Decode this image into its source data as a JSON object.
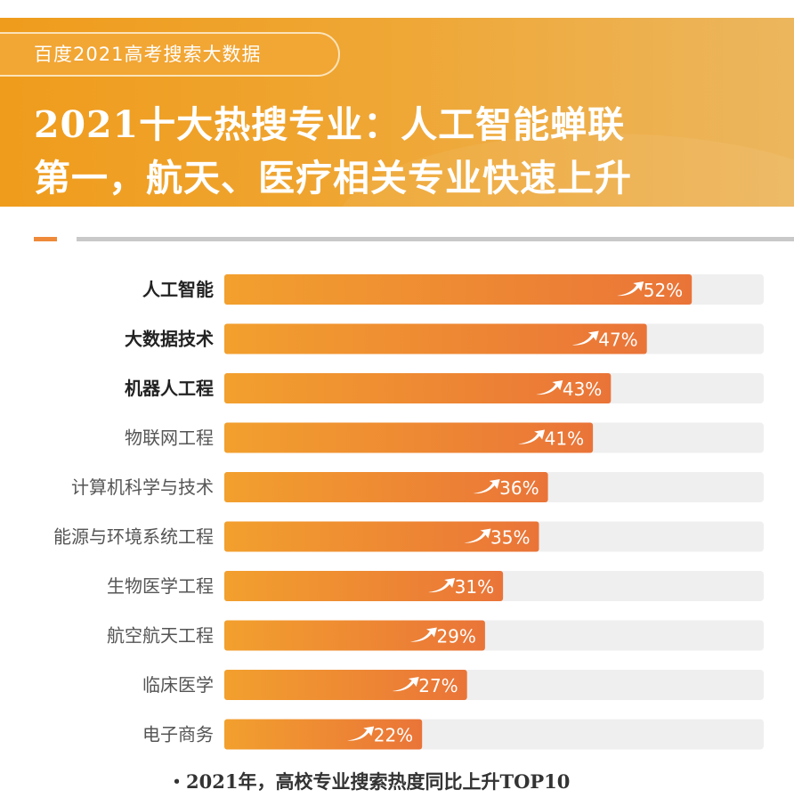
{
  "header": {
    "badge": "百度2021高考搜索大数据",
    "title_line1": "2021十大热搜专业：人工智能蝉联",
    "title_line2": "第一，航天、医疗相关专业快速上升"
  },
  "footer": "・2021年，高校专业搜索热度同比上升TOP10",
  "colors": {
    "header": "#efa030",
    "bar_start": "#f2a02e",
    "bar_end": "#ea7438",
    "track": "#efefef"
  },
  "chart_data": {
    "type": "bar",
    "orientation": "horizontal",
    "categories": [
      "人工智能",
      "大数据技术",
      "机器人工程",
      "物联网工程",
      "计算机科学与技术",
      "能源与环境系统工程",
      "生物医学工程",
      "航空航天工程",
      "临床医学",
      "电子商务"
    ],
    "values": [
      52,
      47,
      43,
      41,
      36,
      35,
      31,
      29,
      27,
      22
    ],
    "data_labels": [
      "52%",
      "47%",
      "43%",
      "41%",
      "36%",
      "35%",
      "31%",
      "29%",
      "27%",
      "22%"
    ],
    "highlighted_categories": [
      "人工智能",
      "大数据技术",
      "机器人工程"
    ],
    "xlim": [
      0,
      60
    ],
    "label_icon": "trend-up-arrow-icon",
    "grid": false
  }
}
